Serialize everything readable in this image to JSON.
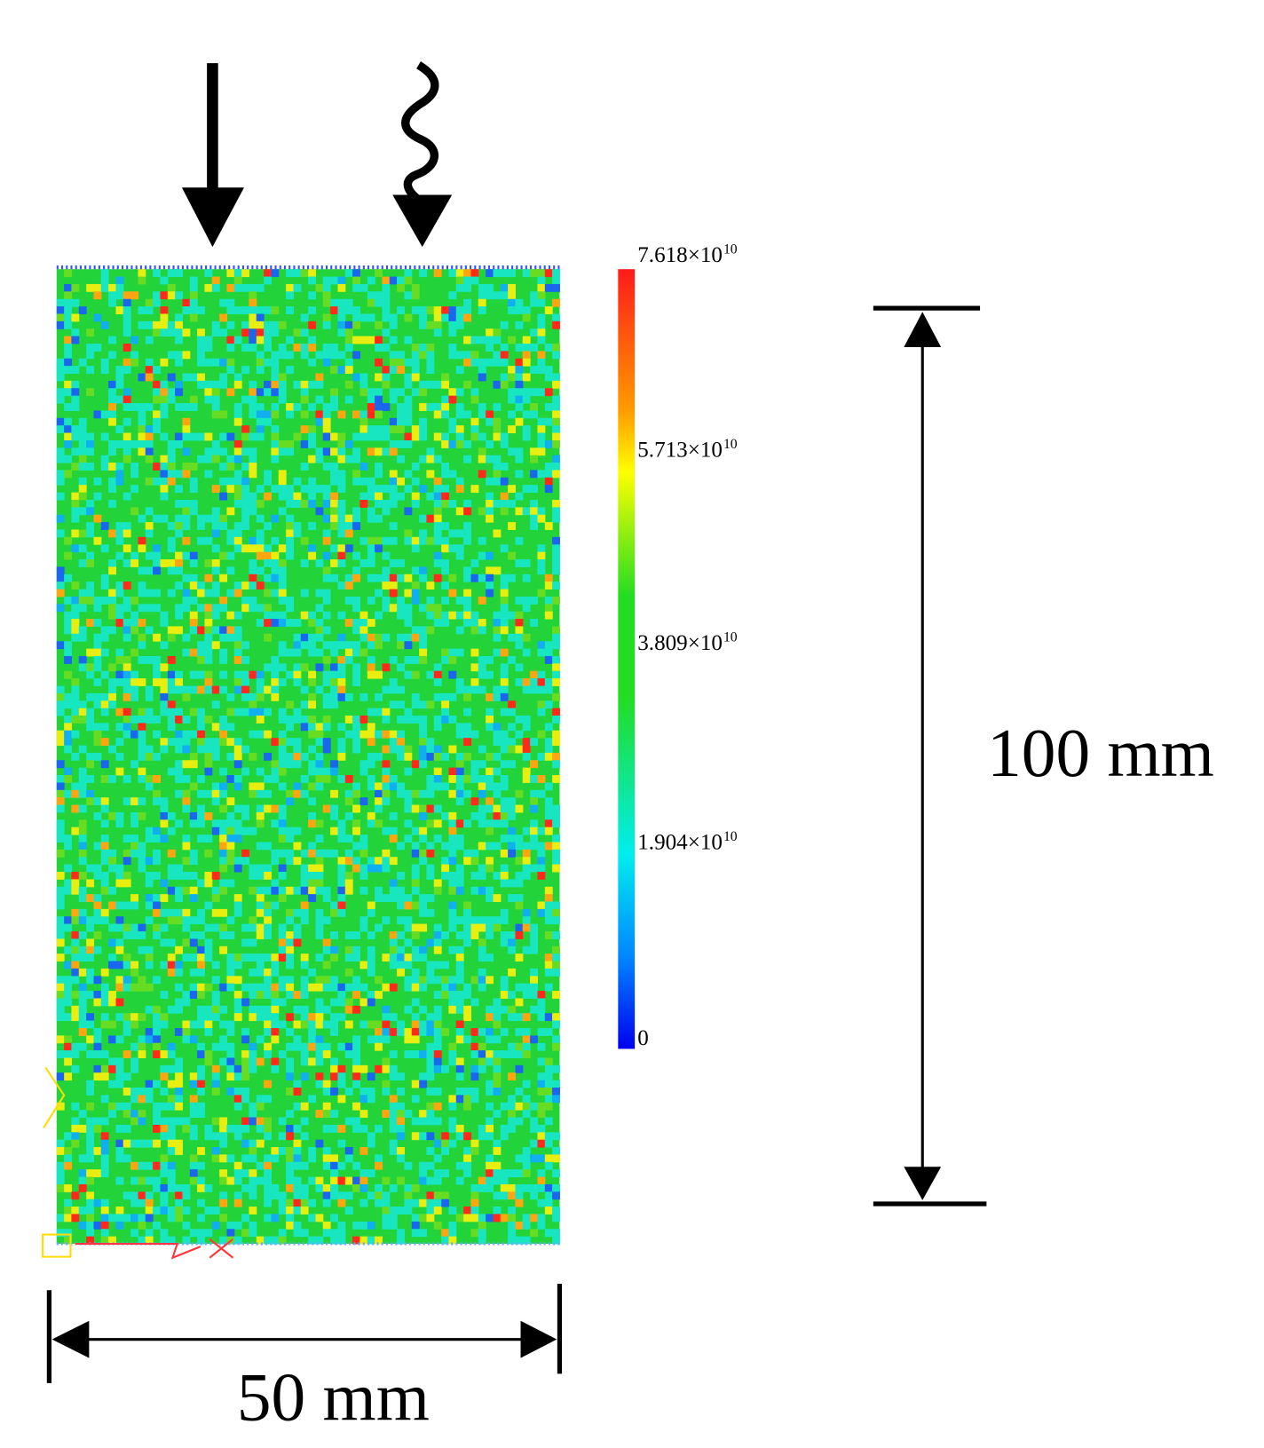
{
  "colorbar": {
    "labels": [
      {
        "base": "7.618×10",
        "exp": "10"
      },
      {
        "base": "5.713×10",
        "exp": "10"
      },
      {
        "base": "3.809×10",
        "exp": "10"
      },
      {
        "base": "1.904×10",
        "exp": "10"
      },
      {
        "base": "0"
      }
    ]
  },
  "dimensions": {
    "height": "100 mm",
    "width": "50 mm"
  }
}
